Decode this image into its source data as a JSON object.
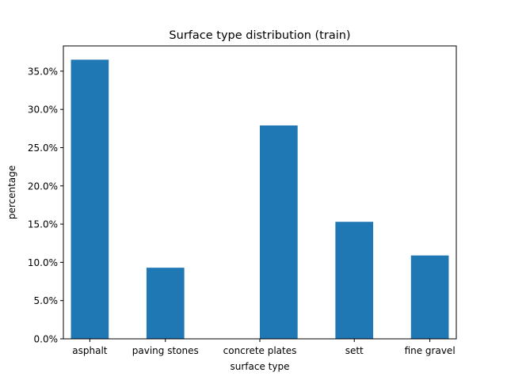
{
  "chart_data": {
    "type": "bar",
    "title": "Surface type distribution (train)",
    "xlabel": "surface type",
    "ylabel": "percentage",
    "bars": [
      {
        "x": 0.0,
        "value": 36.5
      },
      {
        "x": 1.0,
        "value": 9.3
      },
      {
        "x": 2.5,
        "value": 27.9
      },
      {
        "x": 3.5,
        "value": 15.3
      },
      {
        "x": 4.5,
        "value": 10.9
      }
    ],
    "bar_width": 0.5,
    "xlim": [
      -0.35,
      4.85
    ],
    "ylim": [
      0,
      38.3
    ],
    "xticks": [
      {
        "x": 0.0,
        "label": "asphalt"
      },
      {
        "x": 1.0,
        "label": "paving stones"
      },
      {
        "x": 2.25,
        "label": "concrete plates"
      },
      {
        "x": 3.5,
        "label": "sett"
      },
      {
        "x": 4.5,
        "label": "fine gravel"
      }
    ],
    "yticks": [
      {
        "value": 0,
        "label": "0.0%"
      },
      {
        "value": 5,
        "label": "5.0%"
      },
      {
        "value": 10,
        "label": "10.0%"
      },
      {
        "value": 15,
        "label": "15.0%"
      },
      {
        "value": 20,
        "label": "20.0%"
      },
      {
        "value": 25,
        "label": "25.0%"
      },
      {
        "value": 30,
        "label": "30.0%"
      },
      {
        "value": 35,
        "label": "35.0%"
      }
    ],
    "bar_color": "#1f77b4",
    "grid": false,
    "legend": "none"
  }
}
